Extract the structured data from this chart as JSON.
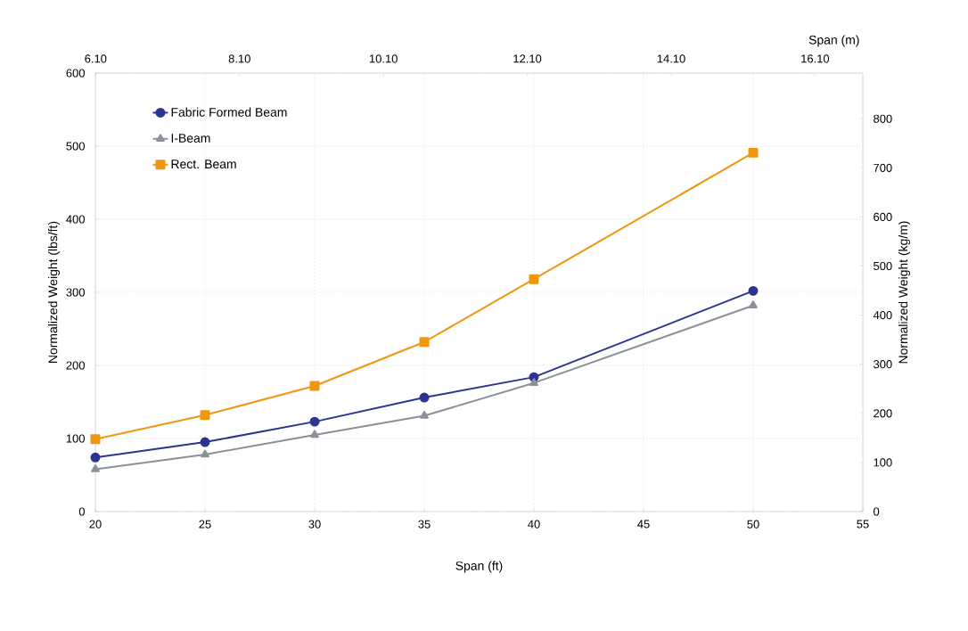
{
  "chart_data": {
    "type": "line",
    "xlabel": "Span (ft)",
    "ylabel": "Normalized Weight (lbs/ft)",
    "y2label": "Normalized Weight (kg/m)",
    "x2label": "Span (m)",
    "x": [
      20,
      25,
      30,
      35,
      40,
      50
    ],
    "series": [
      {
        "name": "Fabric Formed Beam",
        "color": "#2b3590",
        "marker": "circle",
        "values": [
          74,
          95,
          123,
          156,
          184,
          302
        ]
      },
      {
        "name": "I-Beam",
        "color": "#8c9099",
        "marker": "triangle",
        "values": [
          58,
          78,
          105,
          131,
          176,
          282
        ]
      },
      {
        "name": "Rect. Beam",
        "color": "#f0960f",
        "marker": "square",
        "values": [
          99,
          132,
          172,
          232,
          318,
          491
        ]
      }
    ],
    "xlim": [
      20,
      55
    ],
    "xticks": [
      20,
      25,
      30,
      35,
      40,
      45,
      50,
      55
    ],
    "ylim": [
      0,
      600
    ],
    "yticks": [
      0,
      100,
      200,
      300,
      400,
      500,
      600
    ],
    "y2lim": [
      0,
      893
    ],
    "y2ticks": [
      0,
      100,
      200,
      300,
      400,
      500,
      600,
      700,
      800
    ],
    "x2lim": [
      6.096,
      16.764
    ],
    "x2ticks": [
      {
        "value": 6.1,
        "label": "6.10"
      },
      {
        "value": 8.1,
        "label": "8.10"
      },
      {
        "value": 10.1,
        "label": "10.10"
      },
      {
        "value": 12.1,
        "label": "12.10"
      },
      {
        "value": 14.1,
        "label": "14.10"
      },
      {
        "value": 16.1,
        "label": "16.10"
      }
    ],
    "grid": true,
    "legend": "top left",
    "line_style": "solid"
  }
}
